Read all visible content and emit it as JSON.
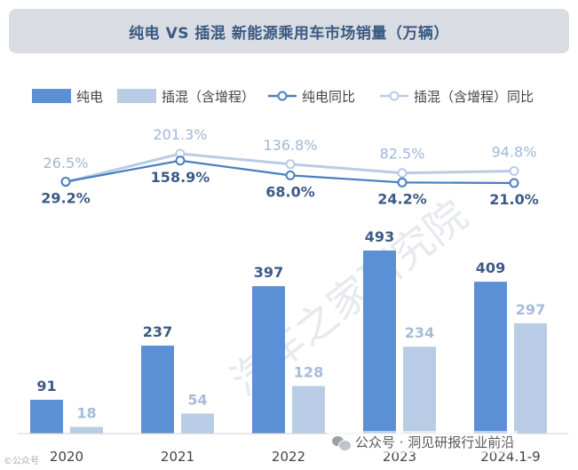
{
  "header": {
    "title": "纯电 VS 插混 新能源乘用车市场销量（万辆）"
  },
  "chart_data": {
    "type": "bar",
    "categories": [
      "2020",
      "2021",
      "2022",
      "2023",
      "2024.1-9"
    ],
    "series": [
      {
        "name": "纯电",
        "kind": "bar",
        "color": "#5b8fd6",
        "values": [
          91,
          237,
          397,
          493,
          409
        ]
      },
      {
        "name": "插混（含增程）",
        "kind": "bar",
        "color": "#b9cce6",
        "values": [
          18,
          54,
          128,
          234,
          297
        ]
      },
      {
        "name": "纯电同比",
        "kind": "line",
        "color": "#4a7fbf",
        "values": [
          29.2,
          158.9,
          68.0,
          24.2,
          21.0
        ],
        "labels": [
          "29.2%",
          "158.9%",
          "68.0%",
          "24.2%",
          "21.0%"
        ]
      },
      {
        "name": "插混（含增程）同比",
        "kind": "line",
        "color": "#b9cce6",
        "values": [
          26.5,
          201.3,
          136.8,
          82.5,
          94.8
        ],
        "labels": [
          "26.5%",
          "201.3%",
          "136.8%",
          "82.5%",
          "94.8%"
        ]
      }
    ],
    "title": "纯电 VS 插混 新能源乘用车市场销量（万辆）",
    "xlabel": "",
    "ylabel": "",
    "legend_position": "top"
  },
  "watermark": {
    "text": "汽车之家研究院"
  },
  "footer": {
    "account": "公众号 · 洞见研报行业前沿"
  },
  "corner": {
    "text": "©公众号"
  }
}
